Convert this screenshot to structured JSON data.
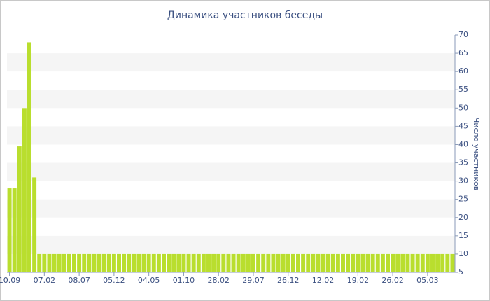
{
  "chart_data": {
    "type": "bar",
    "title": "Динамика участников беседы",
    "y_label": "Число участников",
    "categories": [
      "10.09",
      null,
      null,
      null,
      null,
      null,
      null,
      "07.02",
      null,
      null,
      null,
      null,
      null,
      null,
      "08.07",
      null,
      null,
      null,
      null,
      null,
      null,
      "05.12",
      null,
      null,
      null,
      null,
      null,
      null,
      "04.05",
      null,
      null,
      null,
      null,
      null,
      null,
      "01.10",
      null,
      null,
      null,
      null,
      null,
      null,
      "28.02",
      null,
      null,
      null,
      null,
      null,
      null,
      "29.07",
      null,
      null,
      null,
      null,
      null,
      null,
      "26.12",
      null,
      null,
      null,
      null,
      null,
      null,
      "12.02",
      null,
      null,
      null,
      null,
      null,
      null,
      "19.02",
      null,
      null,
      null,
      null,
      null,
      null,
      "26.02",
      null,
      null,
      null,
      null,
      null,
      null,
      "05.03",
      null,
      null,
      null,
      null,
      null
    ],
    "values": [
      28,
      28,
      39.5,
      50,
      68,
      31,
      10,
      10,
      10,
      10,
      10,
      10,
      10,
      10,
      10,
      10,
      10,
      10,
      10,
      10,
      10,
      10,
      10,
      10,
      10,
      10,
      10,
      10,
      10,
      10,
      10,
      10,
      10,
      10,
      10,
      10,
      10,
      10,
      10,
      10,
      10,
      10,
      10,
      10,
      10,
      10,
      10,
      10,
      10,
      10,
      10,
      10,
      10,
      10,
      10,
      10,
      10,
      10,
      10,
      10,
      10,
      10,
      10,
      10,
      10,
      10,
      10,
      10,
      10,
      10,
      10,
      10,
      10,
      10,
      10,
      10,
      10,
      10,
      10,
      10,
      10,
      10,
      10,
      10,
      10,
      10,
      10,
      10,
      10,
      10
    ],
    "color": "#b9de2e",
    "ylim": [
      5,
      70
    ],
    "yticks": [
      5,
      10,
      15,
      20,
      25,
      30,
      35,
      40,
      45,
      50,
      55,
      60,
      65,
      70
    ],
    "grid": true
  }
}
